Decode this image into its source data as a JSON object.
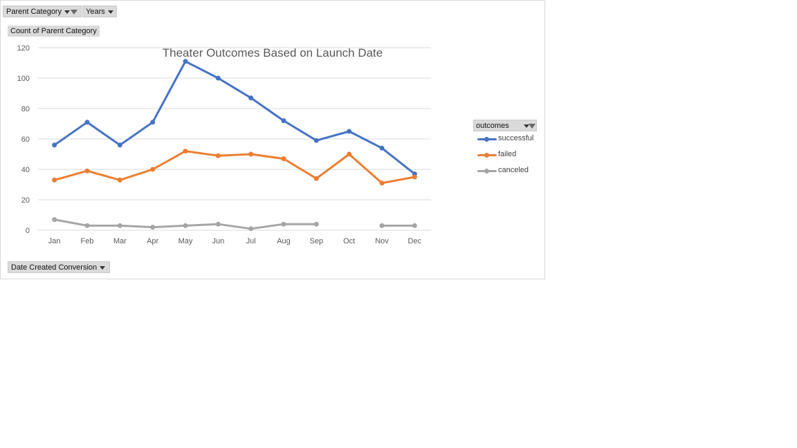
{
  "filters": {
    "parent_category_label": "Parent Category",
    "years_label": "Years",
    "axis_field_label": "Date Created Conversion",
    "value_field_label": "Count of Parent Category",
    "legend_field_label": "outcomes"
  },
  "colors": {
    "successful": "#4472c4",
    "failed": "#ed7d31",
    "canceled": "#a5a5a5",
    "grid": "#d9d9d9",
    "button_bg": "#dadada"
  },
  "icons": {
    "parent_category_dropdown": "chevron-down-icon",
    "parent_category_filter": "filter-icon",
    "years_dropdown": "chevron-down-icon",
    "outcomes_filter": "filter-icon"
  },
  "chart_data": {
    "type": "line",
    "title": "Theater Outcomes Based on Launch Date",
    "xlabel": "",
    "ylabel": "",
    "ylim": [
      0,
      120
    ],
    "yticks": [
      0,
      20,
      40,
      60,
      80,
      100,
      120
    ],
    "grid": true,
    "legend_position": "right",
    "categories": [
      "Jan",
      "Feb",
      "Mar",
      "Apr",
      "May",
      "Jun",
      "Jul",
      "Aug",
      "Sep",
      "Oct",
      "Nov",
      "Dec"
    ],
    "series": [
      {
        "name": "successful",
        "values": [
          56,
          71,
          56,
          71,
          111,
          100,
          87,
          72,
          59,
          65,
          54,
          37
        ]
      },
      {
        "name": "failed",
        "values": [
          33,
          39,
          33,
          40,
          52,
          49,
          50,
          47,
          34,
          50,
          31,
          35
        ]
      },
      {
        "name": "canceled",
        "values": [
          7,
          3,
          3,
          2,
          3,
          4,
          1,
          4,
          4,
          null,
          3,
          3
        ]
      }
    ]
  }
}
